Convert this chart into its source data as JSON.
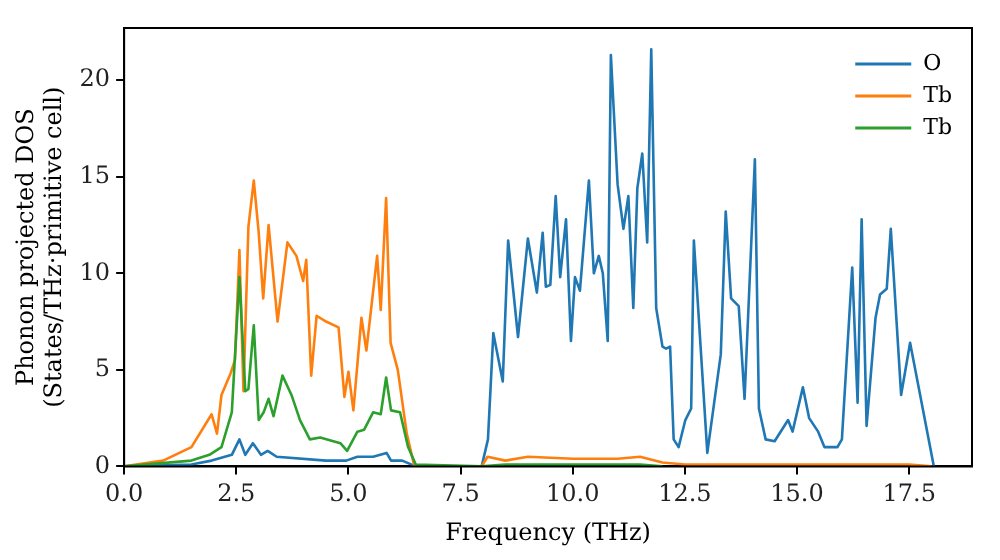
{
  "chart_data": {
    "type": "line",
    "xlabel": "Frequency (THz)",
    "ylabel": "Phonon projected DOS\n(States/THz·primitive cell)",
    "xlim": [
      0,
      18.9
    ],
    "ylim": [
      0,
      22.7
    ],
    "xticks": [
      {
        "value": 0,
        "label": "0.0"
      },
      {
        "value": 2.5,
        "label": "2.5"
      },
      {
        "value": 5,
        "label": "5.0"
      },
      {
        "value": 7.5,
        "label": "7.5"
      },
      {
        "value": 10,
        "label": "10.0"
      },
      {
        "value": 12.5,
        "label": "12.5"
      },
      {
        "value": 15,
        "label": "15.0"
      },
      {
        "value": 17.5,
        "label": "17.5"
      }
    ],
    "yticks": [
      0,
      5,
      10,
      15,
      20
    ],
    "grid": false,
    "legend": "top right",
    "marker": "none",
    "line_style": "solid",
    "series": [
      {
        "name": "O",
        "color": "#1f77b4",
        "x": [
          0,
          1.5,
          1.95,
          2.4,
          2.57,
          2.7,
          2.87,
          3.05,
          3.2,
          3.4,
          4.5,
          4.95,
          5.2,
          5.55,
          5.85,
          5.95,
          6.2,
          6.5,
          7.97,
          8.11,
          8.23,
          8.44,
          8.56,
          8.78,
          9.0,
          9.2,
          9.33,
          9.4,
          9.5,
          9.62,
          9.72,
          9.85,
          9.96,
          10.05,
          10.16,
          10.36,
          10.47,
          10.58,
          10.67,
          10.78,
          10.85,
          11.0,
          11.13,
          11.24,
          11.35,
          11.44,
          11.55,
          11.66,
          11.75,
          11.86,
          12.0,
          12.08,
          12.17,
          12.25,
          12.36,
          12.51,
          12.64,
          12.7,
          13.0,
          13.3,
          13.41,
          13.53,
          13.7,
          13.83,
          14.06,
          14.15,
          14.3,
          14.5,
          14.8,
          14.9,
          15.13,
          15.27,
          15.47,
          15.61,
          15.9,
          16.0,
          16.23,
          16.35,
          16.44,
          16.55,
          16.75,
          16.85,
          17.0,
          17.09,
          17.32,
          17.52,
          18.05
        ],
        "values": [
          0,
          0.1,
          0.3,
          0.6,
          1.4,
          0.6,
          1.2,
          0.6,
          0.8,
          0.5,
          0.3,
          0.3,
          0.5,
          0.5,
          0.7,
          0.3,
          0.3,
          0,
          0,
          1.4,
          6.9,
          4.4,
          11.7,
          6.7,
          11.8,
          9.0,
          12.1,
          9.3,
          9.4,
          14.0,
          9.8,
          12.8,
          6.5,
          9.8,
          9.1,
          14.8,
          10.0,
          10.9,
          10.0,
          6.5,
          21.3,
          14.6,
          12.3,
          14.0,
          8.2,
          14.4,
          16.2,
          11.6,
          21.6,
          8.2,
          6.2,
          6.1,
          6.2,
          1.4,
          1.0,
          2.4,
          3.0,
          11.7,
          0.7,
          5.8,
          13.2,
          8.7,
          8.3,
          3.5,
          15.9,
          3.0,
          1.4,
          1.3,
          2.4,
          1.8,
          4.1,
          2.5,
          1.8,
          1.0,
          1.0,
          1.4,
          10.3,
          3.3,
          12.8,
          2.1,
          7.7,
          8.9,
          9.2,
          12.3,
          3.7,
          6.4,
          0
        ]
      },
      {
        "name": "Tb",
        "color": "#ff7f0e",
        "x": [
          0,
          0.87,
          1.5,
          1.95,
          2.07,
          2.17,
          2.37,
          2.47,
          2.57,
          2.66,
          2.77,
          2.89,
          3.0,
          3.1,
          3.22,
          3.42,
          3.64,
          3.84,
          3.99,
          4.06,
          4.17,
          4.29,
          4.5,
          4.78,
          4.91,
          5.0,
          5.11,
          5.29,
          5.4,
          5.64,
          5.72,
          5.84,
          5.94,
          6.1,
          6.3,
          6.46,
          6.6,
          7.97,
          8.1,
          8.5,
          9.0,
          10.0,
          11.0,
          11.5,
          12.0,
          12.5,
          14.0,
          16.0,
          17.5,
          18.0
        ],
        "values": [
          0,
          0.3,
          1.0,
          2.7,
          1.7,
          3.7,
          4.8,
          5.5,
          11.2,
          3.9,
          12.4,
          14.8,
          12.1,
          8.7,
          12.5,
          7.5,
          11.6,
          10.9,
          9.6,
          10.7,
          4.7,
          7.8,
          7.5,
          7.2,
          3.6,
          4.9,
          2.9,
          7.7,
          6.0,
          10.9,
          8.1,
          13.9,
          6.4,
          5.0,
          1.7,
          0.1,
          0,
          0,
          0.5,
          0.3,
          0.5,
          0.4,
          0.4,
          0.5,
          0.2,
          0.1,
          0.1,
          0.1,
          0.1,
          0
        ]
      },
      {
        "name": "Tb",
        "color": "#2ca02c",
        "x": [
          0,
          1.5,
          1.9,
          2.17,
          2.4,
          2.57,
          2.7,
          2.77,
          2.89,
          3.0,
          3.11,
          3.22,
          3.33,
          3.53,
          3.73,
          3.92,
          4.14,
          4.37,
          4.82,
          4.97,
          5.2,
          5.35,
          5.55,
          5.72,
          5.84,
          5.95,
          6.15,
          6.33,
          6.5,
          7.97,
          8.5,
          10.0,
          11.5,
          12.0
        ],
        "values": [
          0,
          0.3,
          0.6,
          1.0,
          2.8,
          9.8,
          3.9,
          4.0,
          7.3,
          2.4,
          2.8,
          3.5,
          2.6,
          4.7,
          3.7,
          2.4,
          1.4,
          1.5,
          1.2,
          0.8,
          1.8,
          1.9,
          2.8,
          2.7,
          4.6,
          2.9,
          2.8,
          1.0,
          0.1,
          0,
          0.1,
          0.1,
          0.1,
          0
        ]
      }
    ]
  }
}
